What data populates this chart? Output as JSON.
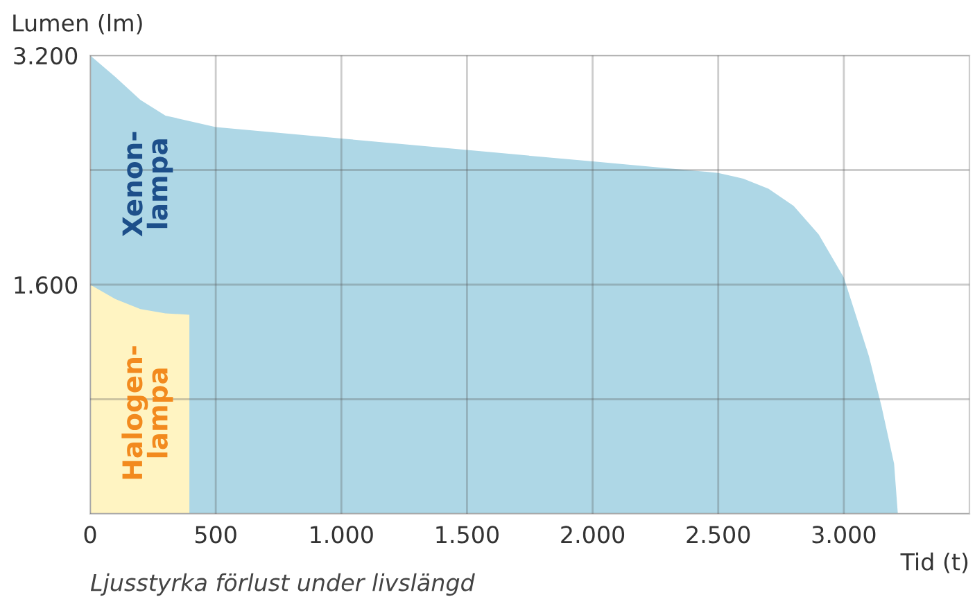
{
  "chart_data": {
    "type": "area",
    "ylabel": "Lumen (lm)",
    "xlabel": "Tid (t)",
    "annotations": [
      "Ljusstyrka förlust under livslängd"
    ],
    "series": [
      {
        "name": "Xenon-\nlampa",
        "color": "#aed7e6",
        "x": [
          0,
          100,
          200,
          300,
          400,
          500,
          1000,
          1500,
          2000,
          2500,
          2600,
          2700,
          2800,
          2900,
          3000,
          3100,
          3150,
          3200,
          3215
        ],
        "values": [
          3200,
          3050,
          2890,
          2780,
          2740,
          2700,
          2620,
          2540,
          2460,
          2380,
          2340,
          2270,
          2150,
          1950,
          1650,
          1100,
          750,
          350,
          0
        ]
      },
      {
        "name": "Halogen-\nlampa",
        "color": "#fff4c2",
        "x": [
          0,
          100,
          200,
          300,
          395,
          395
        ],
        "values": [
          1600,
          1500,
          1430,
          1400,
          1390,
          0
        ]
      }
    ],
    "xlim": [
      0,
      3500
    ],
    "ylim": [
      0,
      3200
    ],
    "xticks": [
      0,
      500,
      {
        "value": 1000,
        "label": "1.000"
      },
      {
        "value": 1500,
        "label": "1.500"
      },
      {
        "value": 2000,
        "label": "2.000"
      },
      {
        "value": 2500,
        "label": "2.500"
      },
      {
        "value": 3000,
        "label": "3.000"
      }
    ],
    "yticks": [
      {
        "value": 0,
        "label": null
      },
      {
        "value": 800,
        "label": null
      },
      {
        "value": 1600,
        "label": "1.600"
      },
      {
        "value": 2400,
        "label": null
      },
      {
        "value": 3200,
        "label": "3.200"
      }
    ],
    "grid": true
  }
}
